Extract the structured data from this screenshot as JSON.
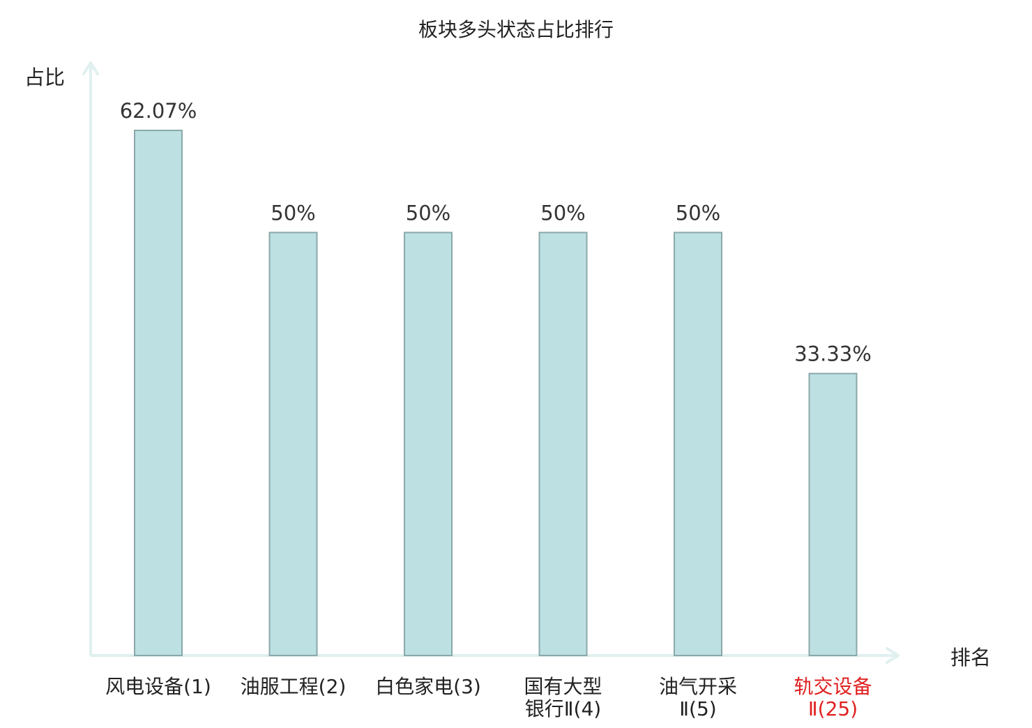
{
  "colors": {
    "bar_fill": "#bde0e2",
    "bar_stroke": "#8aa8aa",
    "axis": "#dff0ef",
    "text": "#333333",
    "title_text": "#222222",
    "highlight": "#e02020"
  },
  "chart_data": {
    "type": "bar",
    "title": "板块多头状态占比排行",
    "ylabel": "占比",
    "xlabel": "排名",
    "ylim": [
      0,
      70
    ],
    "grid": false,
    "legend": "none",
    "categories": [
      {
        "lines": [
          "风电设备(1)"
        ],
        "highlight": false
      },
      {
        "lines": [
          "油服工程(2)"
        ],
        "highlight": false
      },
      {
        "lines": [
          "白色家电(3)"
        ],
        "highlight": false
      },
      {
        "lines": [
          "国有大型",
          "银行Ⅱ(4)"
        ],
        "highlight": false
      },
      {
        "lines": [
          "油气开采",
          "Ⅱ(5)"
        ],
        "highlight": false
      },
      {
        "lines": [
          "轨交设备",
          "Ⅱ(25)"
        ],
        "highlight": true
      }
    ],
    "values": [
      62.07,
      50,
      50,
      50,
      50,
      33.33
    ],
    "value_labels": [
      "62.07%",
      "50%",
      "50%",
      "50%",
      "50%",
      "33.33%"
    ]
  }
}
